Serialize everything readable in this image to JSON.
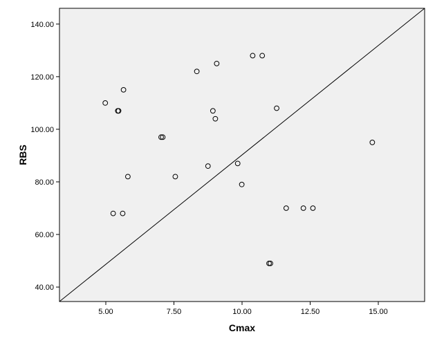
{
  "chart_data": {
    "type": "scatter",
    "xlabel": "Cmax",
    "ylabel": "RBS",
    "xlim": [
      3.3,
      16.7
    ],
    "ylim": [
      34.5,
      146.0
    ],
    "x_ticks": [
      5.0,
      7.5,
      10.0,
      12.5,
      15.0
    ],
    "x_tick_labels": [
      "5.00",
      "7.50",
      "10.00",
      "12.50",
      "15.00"
    ],
    "y_ticks": [
      40,
      60,
      80,
      100,
      120,
      140
    ],
    "y_tick_labels": [
      "40.00",
      "60.00",
      "80.00",
      "100.00",
      "120.00",
      "140.00"
    ],
    "grid": false,
    "plot_background": "#f0f0f0",
    "marker_color": "#000000",
    "reference_line": {
      "type": "diagonal",
      "from": [
        3.3,
        34.5
      ],
      "to": [
        16.7,
        146.0
      ],
      "color": "#000000"
    },
    "points": [
      {
        "x": 4.98,
        "y": 110
      },
      {
        "x": 5.27,
        "y": 68
      },
      {
        "x": 5.44,
        "y": 107
      },
      {
        "x": 5.47,
        "y": 107
      },
      {
        "x": 5.62,
        "y": 68
      },
      {
        "x": 5.65,
        "y": 115
      },
      {
        "x": 5.81,
        "y": 82
      },
      {
        "x": 7.03,
        "y": 97
      },
      {
        "x": 7.09,
        "y": 97
      },
      {
        "x": 7.55,
        "y": 82
      },
      {
        "x": 8.34,
        "y": 122
      },
      {
        "x": 8.75,
        "y": 86
      },
      {
        "x": 8.93,
        "y": 107
      },
      {
        "x": 9.02,
        "y": 104
      },
      {
        "x": 9.07,
        "y": 125
      },
      {
        "x": 9.84,
        "y": 87
      },
      {
        "x": 9.99,
        "y": 79
      },
      {
        "x": 10.39,
        "y": 128
      },
      {
        "x": 10.74,
        "y": 128
      },
      {
        "x": 10.99,
        "y": 49
      },
      {
        "x": 11.04,
        "y": 49
      },
      {
        "x": 11.27,
        "y": 108
      },
      {
        "x": 11.62,
        "y": 70
      },
      {
        "x": 12.25,
        "y": 70
      },
      {
        "x": 12.6,
        "y": 70
      },
      {
        "x": 14.78,
        "y": 95
      }
    ]
  }
}
